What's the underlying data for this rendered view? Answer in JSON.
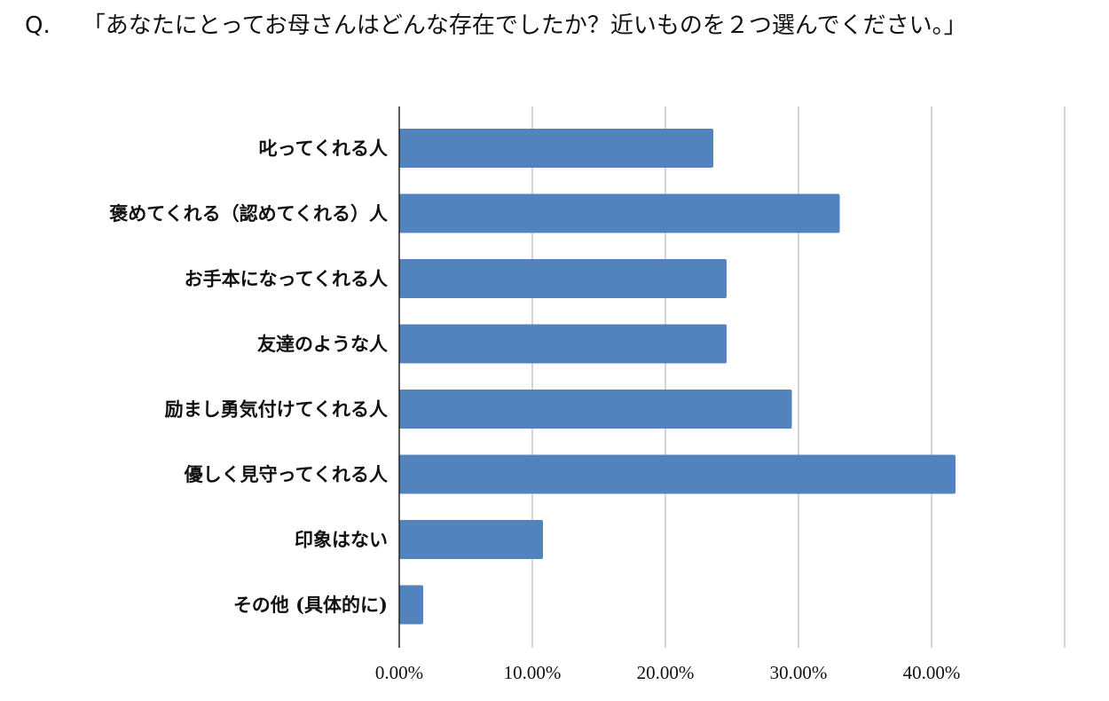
{
  "question": {
    "prefix": "Q.",
    "text": "「あなたにとってお母さんはどんな存在でしたか？近いものを２つ選んでください。」"
  },
  "colors": {
    "bar": "#5283bd",
    "grid": "#c6c6c6",
    "axis": "#222222"
  },
  "chart_data": {
    "type": "bar",
    "orientation": "horizontal",
    "categories": [
      "叱ってくれる人",
      "褒めてくれる（認めてくれる）人",
      "お手本になってくれる人",
      "友達のような人",
      "励まし勇気付けてくれる人",
      "優しく見守ってくれる人",
      "印象はない",
      "その他 (具体的に)"
    ],
    "values": [
      23.6,
      33.1,
      24.6,
      24.6,
      29.5,
      41.8,
      10.8,
      1.8
    ],
    "xlim": [
      0,
      50
    ],
    "tick_values": [
      0,
      10,
      20,
      30,
      40,
      50
    ],
    "tick_labels": [
      "0.00%",
      "10.00%",
      "20.00%",
      "30.00%",
      "40.00%",
      ""
    ],
    "grid": true,
    "legend": "none",
    "title": "",
    "xlabel": "",
    "ylabel": ""
  }
}
